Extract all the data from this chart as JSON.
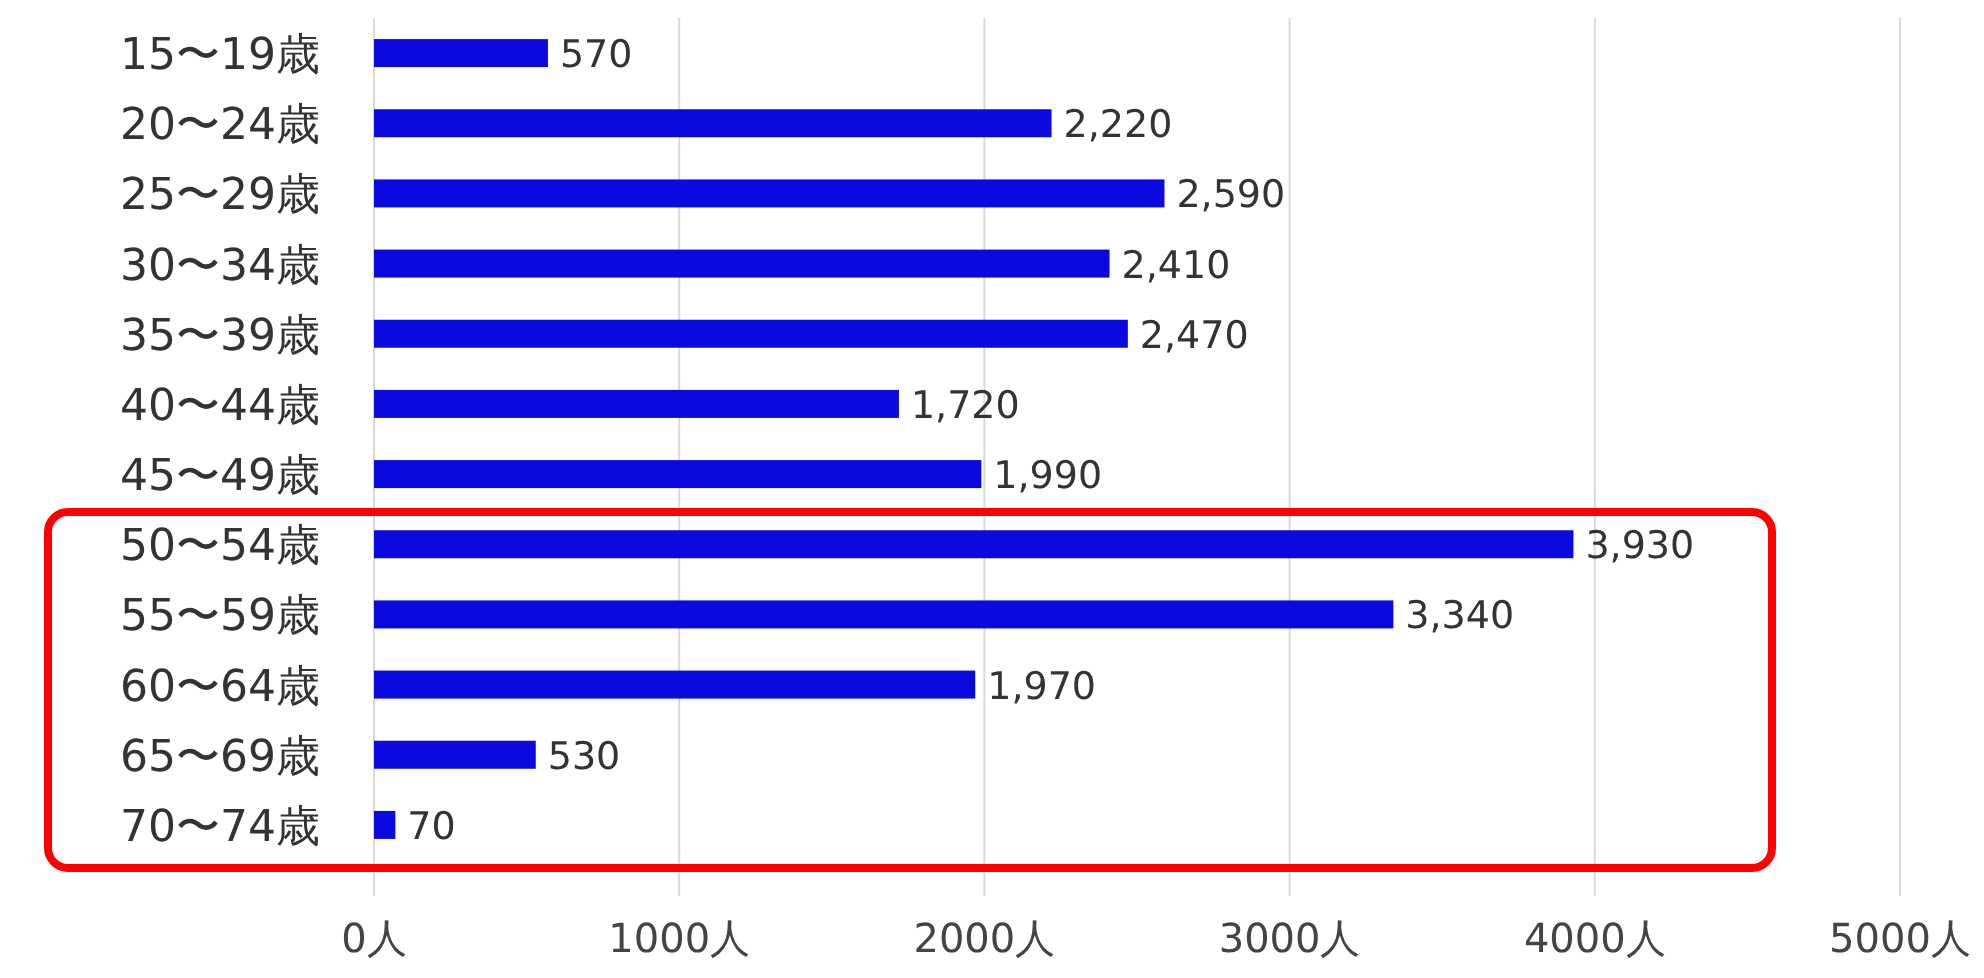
{
  "chart_data": {
    "type": "bar",
    "orientation": "horizontal",
    "categories": [
      "15〜19歳",
      "20〜24歳",
      "25〜29歳",
      "30〜34歳",
      "35〜39歳",
      "40〜44歳",
      "45〜49歳",
      "50〜54歳",
      "55〜59歳",
      "60〜64歳",
      "65〜69歳",
      "70〜74歳"
    ],
    "values": [
      570,
      2220,
      2590,
      2410,
      2470,
      1720,
      1990,
      3930,
      3340,
      1970,
      530,
      70
    ],
    "value_labels": [
      "570",
      "2,220",
      "2,590",
      "2,410",
      "2,470",
      "1,720",
      "1,990",
      "3,930",
      "3,340",
      "1,970",
      "530",
      "70"
    ],
    "color": "#0a0ae0",
    "xlim": [
      0,
      5000
    ],
    "xticks": [
      {
        "value": 0,
        "label": "0人"
      },
      {
        "value": 1000,
        "label": "1000人"
      },
      {
        "value": 2000,
        "label": "2000人"
      },
      {
        "value": 3000,
        "label": "3000人"
      },
      {
        "value": 4000,
        "label": "4000人"
      },
      {
        "value": 5000,
        "label": "5000人"
      }
    ],
    "grid": "x"
  }
}
